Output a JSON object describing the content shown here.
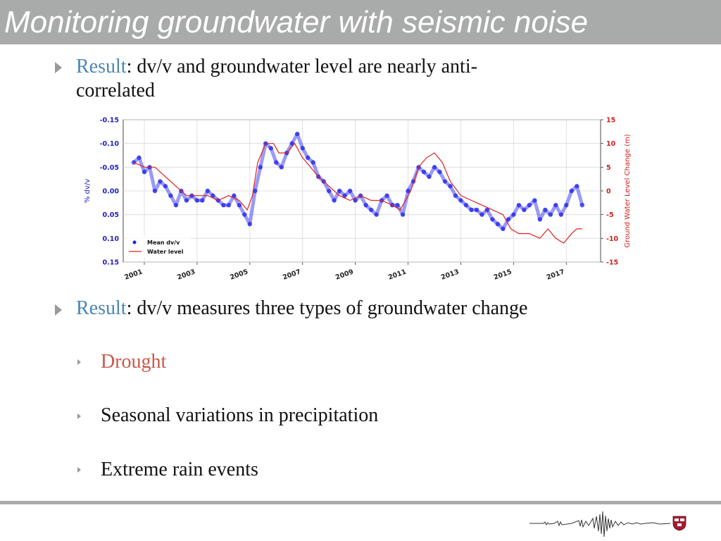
{
  "slide": {
    "title": "Monitoring groundwater with seismic noise",
    "bullet1": {
      "keyword": "Result",
      "rest_line1": ": dv/v and groundwater level are nearly anti-",
      "rest_line2": "correlated"
    },
    "bullet2": {
      "keyword": "Result",
      "rest": ": dv/v measures three types of groundwater change"
    },
    "sub_bullets": [
      {
        "label": "Drought",
        "color": "#c9584a"
      },
      {
        "label": "Seasonal variations in precipitation",
        "color": "#111111"
      },
      {
        "label": "Extreme rain events",
        "color": "#111111"
      }
    ]
  },
  "chart_data": {
    "type": "scatter",
    "x_ticks": [
      "2001",
      "2003",
      "2005",
      "2007",
      "2009",
      "2011",
      "2013",
      "2015",
      "2017"
    ],
    "xlim": [
      2000.2,
      2018.3
    ],
    "y_left_label": "% dv/v",
    "y_left_ticks": [
      "-0.15",
      "-0.10",
      "-0.05",
      "0.00",
      "0.05",
      "0.10",
      "0.15"
    ],
    "y_left_lim": [
      -0.15,
      0.15
    ],
    "y_left_inverted": true,
    "y_right_label": "Ground Water Level Change (m)",
    "y_right_ticks": [
      "15",
      "10",
      "5",
      "0",
      "-5",
      "-10",
      "-15"
    ],
    "y_right_lim": [
      -15,
      15
    ],
    "legend": [
      {
        "name": "Mean dv/v",
        "marker": "dot",
        "color": "#2020ee"
      },
      {
        "name": "Water level",
        "marker": "line",
        "color": "#e02020"
      }
    ],
    "legend_position": "lower-left",
    "colors": {
      "dvv": "#2020ee",
      "water": "#e02020",
      "left_axis": "#2020cc",
      "right_axis": "#d02020"
    },
    "series": [
      {
        "name": "Mean dv/v",
        "x": [
          2000.6,
          2000.8,
          2001.0,
          2001.2,
          2001.4,
          2001.6,
          2001.8,
          2002.0,
          2002.2,
          2002.4,
          2002.6,
          2002.8,
          2003.0,
          2003.2,
          2003.4,
          2003.6,
          2003.8,
          2004.0,
          2004.2,
          2004.4,
          2004.6,
          2004.8,
          2005.0,
          2005.2,
          2005.4,
          2005.6,
          2005.8,
          2006.0,
          2006.2,
          2006.4,
          2006.6,
          2006.8,
          2007.0,
          2007.2,
          2007.4,
          2007.6,
          2007.8,
          2008.0,
          2008.2,
          2008.4,
          2008.6,
          2008.8,
          2009.0,
          2009.2,
          2009.4,
          2009.6,
          2009.8,
          2010.0,
          2010.2,
          2010.4,
          2010.6,
          2010.8,
          2011.0,
          2011.2,
          2011.4,
          2011.6,
          2011.8,
          2012.0,
          2012.2,
          2012.4,
          2012.6,
          2012.8,
          2013.0,
          2013.2,
          2013.4,
          2013.6,
          2013.8,
          2014.0,
          2014.2,
          2014.4,
          2014.6,
          2014.8,
          2015.0,
          2015.2,
          2015.4,
          2015.6,
          2015.8,
          2016.0,
          2016.2,
          2016.4,
          2016.6,
          2016.8,
          2017.0,
          2017.2,
          2017.4,
          2017.6
        ],
        "y": [
          -0.06,
          -0.07,
          -0.04,
          -0.05,
          0.0,
          -0.02,
          -0.01,
          0.01,
          0.03,
          0.0,
          0.02,
          0.01,
          0.02,
          0.02,
          0.0,
          0.01,
          0.02,
          0.03,
          0.03,
          0.01,
          0.03,
          0.05,
          0.07,
          0.0,
          -0.05,
          -0.1,
          -0.09,
          -0.06,
          -0.05,
          -0.08,
          -0.1,
          -0.12,
          -0.09,
          -0.07,
          -0.06,
          -0.03,
          -0.02,
          0.0,
          0.02,
          0.0,
          0.01,
          0.0,
          0.02,
          0.01,
          0.03,
          0.04,
          0.05,
          0.02,
          0.01,
          0.03,
          0.03,
          0.05,
          0.0,
          -0.02,
          -0.05,
          -0.04,
          -0.03,
          -0.05,
          -0.04,
          -0.02,
          -0.01,
          0.01,
          0.02,
          0.03,
          0.04,
          0.04,
          0.05,
          0.04,
          0.06,
          0.07,
          0.08,
          0.06,
          0.05,
          0.03,
          0.04,
          0.03,
          0.02,
          0.06,
          0.04,
          0.05,
          0.03,
          0.05,
          0.03,
          0.0,
          -0.01,
          0.03
        ]
      },
      {
        "name": "Water level",
        "x": [
          2000.6,
          2001.0,
          2001.4,
          2001.8,
          2002.2,
          2002.6,
          2003.0,
          2003.4,
          2003.8,
          2004.2,
          2004.6,
          2004.9,
          2005.1,
          2005.3,
          2005.6,
          2005.9,
          2006.1,
          2006.4,
          2006.7,
          2007.0,
          2007.3,
          2007.6,
          2008.0,
          2008.4,
          2008.8,
          2009.2,
          2009.6,
          2010.0,
          2010.4,
          2010.7,
          2010.9,
          2011.1,
          2011.4,
          2011.7,
          2012.0,
          2012.3,
          2012.6,
          2013.0,
          2013.4,
          2013.8,
          2014.2,
          2014.6,
          2014.9,
          2015.2,
          2015.6,
          2016.0,
          2016.3,
          2016.6,
          2016.9,
          2017.2,
          2017.4,
          2017.6
        ],
        "y": [
          6,
          5,
          5,
          3,
          1,
          -1,
          -1,
          -1,
          -2,
          -1,
          -2,
          -4,
          -1,
          6,
          10,
          10,
          8,
          8,
          10,
          7,
          5,
          3,
          1,
          -1,
          -2,
          -1,
          -2,
          -2,
          -3,
          -4,
          -2,
          0,
          5,
          7,
          8,
          6,
          2,
          -1,
          -2,
          -3,
          -4,
          -5,
          -8,
          -9,
          -9,
          -10,
          -8,
          -10,
          -11,
          -9,
          -8,
          -8
        ]
      }
    ]
  },
  "footer": {
    "logo": "harvard-shield",
    "decoration": "seismogram-waveform"
  }
}
